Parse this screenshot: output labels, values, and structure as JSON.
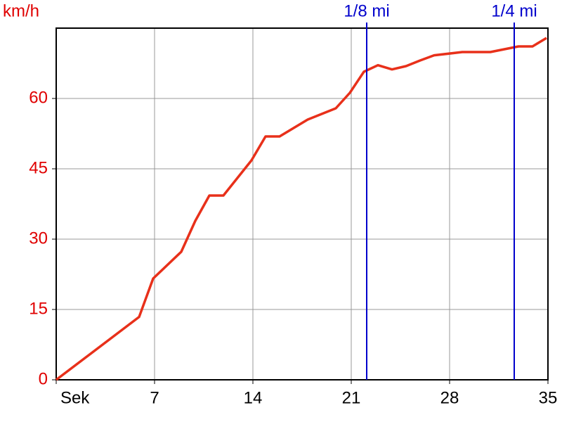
{
  "chart_data": {
    "type": "line",
    "y_label": "km/h",
    "x": [
      0,
      5.9,
      6.9,
      8.9,
      9.9,
      10.9,
      11.9,
      13.9,
      14.9,
      15.9,
      17.9,
      19.9,
      20.9,
      21.9,
      22.9,
      23.9,
      24.9,
      25.9,
      26.9,
      28.9,
      29.9,
      30.9,
      31.9,
      32.9,
      33.9,
      34.9
    ],
    "series": [
      {
        "color": "#e8301a",
        "values": [
          0,
          13.4,
          21.6,
          27.3,
          33.9,
          39.3,
          39.3,
          46.8,
          51.9,
          51.9,
          55.5,
          57.9,
          61.2,
          65.7,
          67.1,
          66.2,
          66.9,
          68.1,
          69.2,
          69.9,
          69.9,
          69.9,
          70.5,
          71.1,
          71.1,
          72.9
        ]
      }
    ],
    "xlim": [
      0,
      35
    ],
    "ylim": [
      0,
      75
    ],
    "xticks": [
      {
        "value": 0,
        "label": "Sek"
      },
      7,
      14,
      21,
      28,
      35
    ],
    "yticks": [
      0,
      15,
      30,
      45,
      60
    ],
    "grid": true,
    "markers": [
      {
        "x": 22.1,
        "label": "1/8 mi",
        "color": "#0000cc"
      },
      {
        "x": 32.6,
        "label": "1/4 mi",
        "color": "#0000cc"
      }
    ]
  }
}
